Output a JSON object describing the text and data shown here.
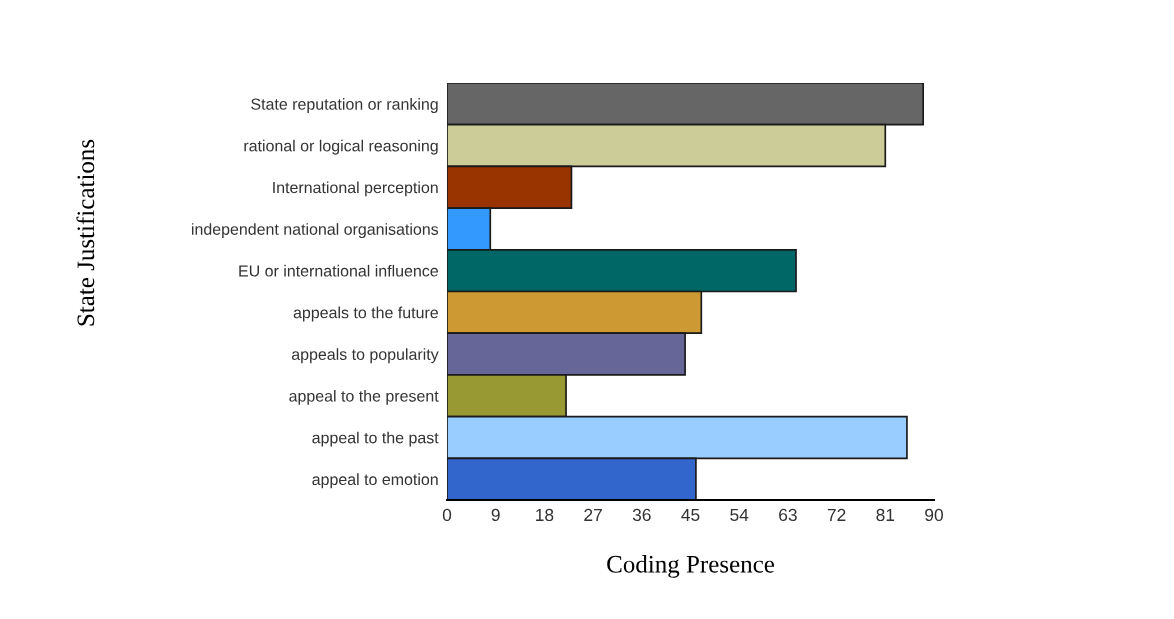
{
  "chart_data": {
    "type": "bar",
    "orientation": "horizontal",
    "xlabel": "Coding Presence",
    "ylabel": "State Justifications",
    "categories": [
      "State reputation or ranking",
      "rational or logical reasoning",
      "International perception",
      "independent national organisations",
      "EU or international influence",
      "appeals to the future",
      "appeals to popularity",
      "appeal to the present",
      "appeal to the past",
      "appeal to emotion"
    ],
    "values": [
      88,
      81,
      23,
      8,
      64.5,
      47,
      44,
      22,
      85,
      46
    ],
    "colors": [
      "#666666",
      "#cccc99",
      "#993300",
      "#3399ff",
      "#006666",
      "#cc9933",
      "#666699",
      "#999933",
      "#99ccff",
      "#3366cc"
    ],
    "xlim": [
      0,
      90
    ],
    "xticks": [
      0,
      9,
      18,
      27,
      36,
      45,
      54,
      63,
      72,
      81,
      90
    ],
    "grid": false,
    "legend": false
  }
}
